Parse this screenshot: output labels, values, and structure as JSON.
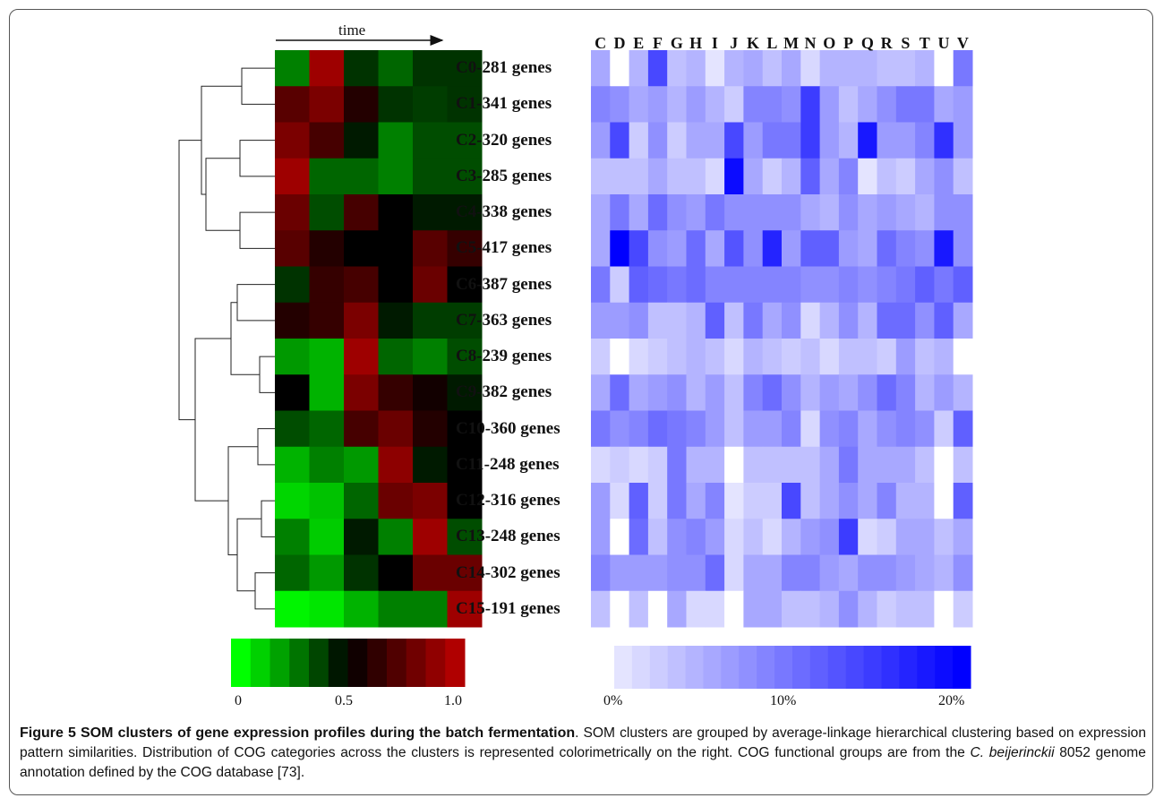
{
  "figure": {
    "time_label": "time",
    "cluster_labels": [
      "C0-281 genes",
      "C1-341 genes",
      "C2-320 genes",
      "C3-285 genes",
      "C4-338 genes",
      "C5-417 genes",
      "C6-387 genes",
      "C7-363 genes",
      "C8-239 genes",
      "C9-382 genes",
      "C10-360 genes",
      "C11-248 genes",
      "C12-316 genes",
      "C13-248 genes",
      "C14-302 genes",
      "C15-191 genes"
    ],
    "cog_categories": [
      "C",
      "D",
      "E",
      "F",
      "G",
      "H",
      "I",
      "J",
      "K",
      "L",
      "M",
      "N",
      "O",
      "P",
      "Q",
      "R",
      "S",
      "T",
      "U",
      "V"
    ],
    "expression_scale": {
      "ticks": [
        "0",
        "0.5",
        "1.0"
      ]
    },
    "cog_scale": {
      "ticks": [
        "0%",
        "10%",
        "20%"
      ]
    },
    "colors": {
      "low": "#00ff00",
      "mid": "#000000",
      "high": "#b00000",
      "cog_low": "#f0f0ff",
      "cog_high": "#0000ff"
    }
  },
  "caption": {
    "label": "Figure 5",
    "title": "SOM clusters of gene expression profiles during the batch fermentation",
    "text_1": ". SOM clusters are grouped by average-linkage hierarchical clustering based on expression pattern similarities. Distribution of COG categories across the clusters is represented colorimetrically on the right. COG functional groups are from the ",
    "species": "C. beijerinckii",
    "text_2": " 8052 genome annotation defined by the COG database [73]."
  },
  "chart_data": [
    {
      "type": "heatmap",
      "title": "",
      "xlabel": "time",
      "rows": [
        "C0-281 genes",
        "C1-341 genes",
        "C2-320 genes",
        "C3-285 genes",
        "C4-338 genes",
        "C5-417 genes",
        "C6-387 genes",
        "C7-363 genes",
        "C8-239 genes",
        "C9-382 genes",
        "C10-360 genes",
        "C11-248 genes",
        "C12-316 genes",
        "C13-248 genes",
        "C14-302 genes",
        "C15-191 genes"
      ],
      "columns": 6,
      "scale_range": [
        0,
        1.0
      ],
      "values": [
        [
          0.25,
          0.95,
          0.4,
          0.3,
          0.4,
          0.4
        ],
        [
          0.75,
          0.85,
          0.6,
          0.4,
          0.38,
          0.4
        ],
        [
          0.85,
          0.7,
          0.45,
          0.25,
          0.35,
          0.35
        ],
        [
          0.95,
          0.3,
          0.3,
          0.25,
          0.35,
          0.35
        ],
        [
          0.8,
          0.35,
          0.7,
          0.5,
          0.45,
          0.45
        ],
        [
          0.75,
          0.6,
          0.5,
          0.5,
          0.75,
          0.65
        ],
        [
          0.4,
          0.65,
          0.7,
          0.5,
          0.8,
          0.5
        ],
        [
          0.6,
          0.65,
          0.85,
          0.45,
          0.38,
          0.38
        ],
        [
          0.2,
          0.15,
          0.95,
          0.3,
          0.25,
          0.35
        ],
        [
          0.5,
          0.15,
          0.85,
          0.65,
          0.55,
          0.45
        ],
        [
          0.35,
          0.3,
          0.7,
          0.8,
          0.6,
          0.5
        ],
        [
          0.15,
          0.25,
          0.2,
          0.9,
          0.45,
          0.5
        ],
        [
          0.08,
          0.12,
          0.3,
          0.8,
          0.85,
          0.5
        ],
        [
          0.25,
          0.1,
          0.45,
          0.25,
          0.95,
          0.35
        ],
        [
          0.3,
          0.2,
          0.4,
          0.5,
          0.8,
          0.8
        ],
        [
          0.02,
          0.05,
          0.15,
          0.25,
          0.25,
          0.95
        ]
      ]
    },
    {
      "type": "heatmap",
      "title": "",
      "rows": [
        "C0-281 genes",
        "C1-341 genes",
        "C2-320 genes",
        "C3-285 genes",
        "C4-338 genes",
        "C5-417 genes",
        "C6-387 genes",
        "C7-363 genes",
        "C8-239 genes",
        "C9-382 genes",
        "C10-360 genes",
        "C11-248 genes",
        "C12-316 genes",
        "C13-248 genes",
        "C14-302 genes",
        "C15-191 genes"
      ],
      "columns": [
        "C",
        "D",
        "E",
        "F",
        "G",
        "H",
        "I",
        "J",
        "K",
        "L",
        "M",
        "N",
        "O",
        "P",
        "Q",
        "R",
        "S",
        "T",
        "U",
        "V"
      ],
      "scale_range": [
        0,
        20
      ],
      "unit": "%",
      "values": [
        [
          6,
          0,
          5,
          14,
          4,
          5,
          1,
          5,
          6,
          4,
          6,
          2,
          5,
          5,
          5,
          4,
          4,
          5,
          0,
          10
        ],
        [
          9,
          8,
          6,
          7,
          5,
          7,
          5,
          3,
          9,
          9,
          8,
          15,
          7,
          4,
          6,
          8,
          10,
          10,
          6,
          7
        ],
        [
          7,
          14,
          3,
          8,
          3,
          6,
          6,
          14,
          7,
          10,
          10,
          15,
          7,
          5,
          18,
          7,
          7,
          9,
          16,
          7
        ],
        [
          4,
          4,
          4,
          6,
          4,
          4,
          2,
          19,
          6,
          3,
          5,
          12,
          6,
          9,
          1,
          4,
          3,
          6,
          8,
          4
        ],
        [
          6,
          10,
          6,
          11,
          8,
          7,
          10,
          8,
          8,
          8,
          8,
          6,
          5,
          8,
          6,
          7,
          6,
          5,
          8,
          8
        ],
        [
          6,
          20,
          14,
          8,
          7,
          11,
          6,
          13,
          8,
          17,
          7,
          12,
          12,
          7,
          6,
          11,
          9,
          8,
          18,
          8
        ],
        [
          10,
          3,
          12,
          11,
          10,
          11,
          9,
          9,
          9,
          9,
          9,
          8,
          8,
          9,
          8,
          9,
          10,
          12,
          10,
          12
        ],
        [
          7,
          7,
          8,
          4,
          4,
          5,
          12,
          4,
          10,
          6,
          8,
          2,
          5,
          8,
          5,
          11,
          11,
          8,
          12,
          6
        ],
        [
          3,
          0,
          2,
          3,
          4,
          5,
          4,
          2,
          5,
          4,
          3,
          4,
          2,
          4,
          4,
          3,
          7,
          4,
          5,
          0
        ],
        [
          6,
          11,
          6,
          7,
          8,
          5,
          7,
          4,
          9,
          11,
          8,
          5,
          7,
          6,
          8,
          11,
          9,
          5,
          7,
          5
        ],
        [
          10,
          8,
          9,
          11,
          10,
          9,
          7,
          4,
          7,
          7,
          9,
          2,
          8,
          9,
          6,
          8,
          9,
          8,
          3,
          12
        ],
        [
          2,
          3,
          2,
          3,
          10,
          5,
          5,
          0,
          4,
          4,
          4,
          4,
          6,
          10,
          6,
          6,
          6,
          4,
          0,
          4
        ],
        [
          7,
          2,
          12,
          3,
          10,
          6,
          9,
          1,
          3,
          3,
          14,
          4,
          6,
          8,
          6,
          9,
          5,
          5,
          0,
          12
        ],
        [
          7,
          0,
          11,
          4,
          8,
          9,
          7,
          2,
          4,
          2,
          5,
          7,
          8,
          15,
          2,
          3,
          6,
          6,
          4,
          6
        ],
        [
          9,
          7,
          7,
          7,
          8,
          8,
          11,
          2,
          6,
          6,
          9,
          9,
          7,
          6,
          8,
          8,
          7,
          6,
          5,
          8
        ],
        [
          4,
          0,
          4,
          0,
          6,
          2,
          2,
          0,
          6,
          6,
          4,
          4,
          5,
          8,
          5,
          3,
          4,
          4,
          0,
          3
        ]
      ]
    }
  ]
}
